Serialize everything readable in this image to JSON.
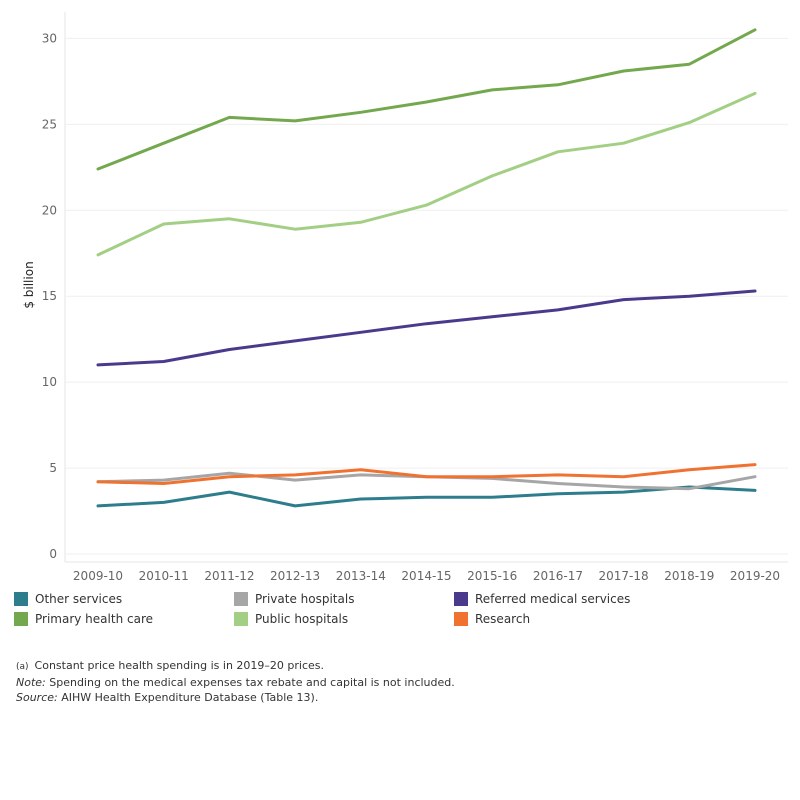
{
  "chart_data": {
    "type": "line",
    "ylabel": "$ billion",
    "xlabel": "",
    "ylim": [
      0,
      32
    ],
    "yticks": [
      0,
      5,
      10,
      15,
      20,
      25,
      30
    ],
    "grid": true,
    "legend_position": "bottom",
    "categories": [
      "2009-10",
      "2010-11",
      "2011-12",
      "2012-13",
      "2013-14",
      "2014-15",
      "2015-16",
      "2016-17",
      "2017-18",
      "2018-19",
      "2019-20"
    ],
    "series": [
      {
        "name": "Other services",
        "color": "#2e7d8c",
        "values": [
          2.8,
          3.0,
          3.6,
          2.8,
          3.2,
          3.3,
          3.3,
          3.5,
          3.6,
          3.9,
          3.7
        ]
      },
      {
        "name": "Private hospitals",
        "color": "#a6a6a6",
        "values": [
          4.2,
          4.3,
          4.7,
          4.3,
          4.6,
          4.5,
          4.4,
          4.1,
          3.9,
          3.8,
          4.5
        ]
      },
      {
        "name": "Referred medical services",
        "color": "#4b3a8c",
        "values": [
          11.0,
          11.2,
          11.9,
          12.4,
          12.9,
          13.4,
          13.8,
          14.2,
          14.8,
          15.0,
          15.3
        ]
      },
      {
        "name": "Primary health care",
        "color": "#74a84e",
        "values": [
          22.4,
          23.9,
          25.4,
          25.2,
          25.7,
          26.3,
          27.0,
          27.3,
          28.1,
          28.5,
          30.5
        ]
      },
      {
        "name": "Public hospitals",
        "color": "#a3cf85",
        "values": [
          17.4,
          19.2,
          19.5,
          18.9,
          19.3,
          20.3,
          22.0,
          23.4,
          23.9,
          25.1,
          26.8
        ]
      },
      {
        "name": "Research",
        "color": "#f07230",
        "values": [
          4.2,
          4.1,
          4.5,
          4.6,
          4.9,
          4.5,
          4.5,
          4.6,
          4.5,
          4.9,
          5.2
        ]
      }
    ]
  },
  "notes": {
    "footnote_marker": "(a)",
    "footnote_text": "Constant price health spending is in 2019–20 prices.",
    "note_label": "Note:",
    "note_text": " Spending on the medical expenses tax rebate and capital is not included.",
    "source_label": "Source:",
    "source_text": " AIHW Health Expenditure Database (Table 13)."
  }
}
